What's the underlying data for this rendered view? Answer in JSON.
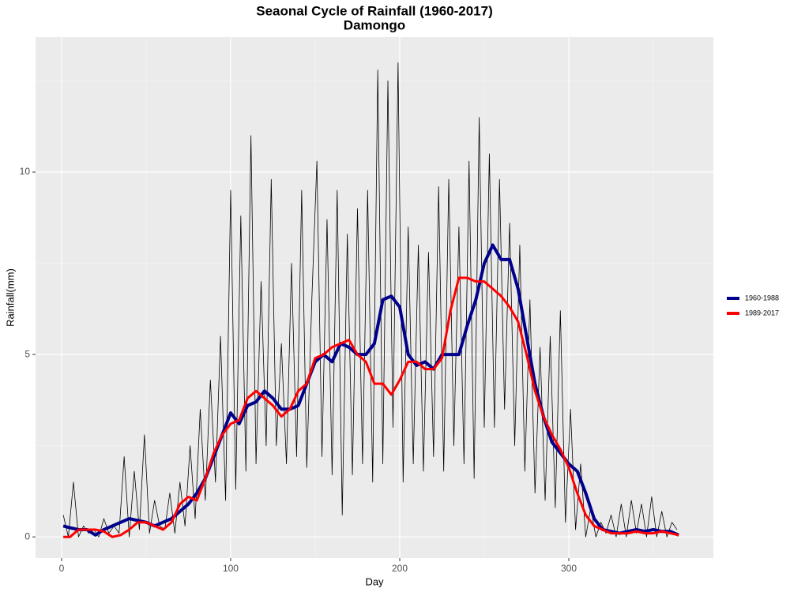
{
  "chart_data": {
    "type": "line",
    "title": "Seaonal Cycle of Rainfall (1960-2017)",
    "subtitle": "Damongo",
    "xlabel": "Day",
    "ylabel": "Rainfall(mm)",
    "xlim": [
      -15.4,
      385.5
    ],
    "ylim": [
      -0.58,
      13.7
    ],
    "xticks": [
      0,
      100,
      200,
      300
    ],
    "yticks": [
      0,
      5,
      10
    ],
    "xminor": [
      50,
      150,
      250,
      350
    ],
    "yminor": [
      2.5,
      7.5,
      12.5
    ],
    "grid": true,
    "legend": "right",
    "series": [
      {
        "color": "#000000",
        "width": 0.8,
        "x": [
          1,
          4,
          7,
          10,
          13,
          16,
          19,
          22,
          25,
          28,
          31,
          34,
          37,
          40,
          43,
          46,
          49,
          52,
          55,
          58,
          61,
          64,
          67,
          70,
          73,
          76,
          79,
          82,
          85,
          88,
          91,
          94,
          97,
          100,
          103,
          106,
          109,
          112,
          115,
          118,
          121,
          124,
          127,
          130,
          133,
          136,
          139,
          142,
          145,
          148,
          151,
          154,
          157,
          160,
          163,
          166,
          169,
          172,
          175,
          178,
          181,
          184,
          187,
          190,
          193,
          196,
          199,
          202,
          205,
          208,
          211,
          214,
          217,
          220,
          223,
          226,
          229,
          232,
          235,
          238,
          241,
          244,
          247,
          250,
          253,
          256,
          259,
          262,
          265,
          268,
          271,
          274,
          277,
          280,
          283,
          286,
          289,
          292,
          295,
          298,
          301,
          304,
          307,
          310,
          313,
          316,
          319,
          322,
          325,
          328,
          331,
          334,
          337,
          340,
          343,
          346,
          349,
          352,
          355,
          358,
          361,
          364
        ],
        "values": [
          0.6,
          0,
          1.5,
          0,
          0.3,
          0.1,
          0.2,
          0,
          0.5,
          0.1,
          0.3,
          0.1,
          2.2,
          0,
          1.8,
          0.2,
          2.8,
          0.1,
          1.0,
          0.3,
          0.2,
          1.2,
          0.1,
          1.5,
          0.3,
          2.5,
          0.5,
          3.5,
          1.0,
          4.3,
          1.5,
          5.5,
          1.0,
          9.5,
          1.3,
          8.8,
          1.8,
          11.0,
          2.0,
          7.0,
          2.5,
          9.8,
          2.5,
          5.3,
          2.0,
          7.5,
          2.2,
          9.5,
          1.9,
          6.5,
          10.3,
          2.2,
          8.7,
          1.7,
          9.5,
          0.6,
          8.3,
          1.7,
          9.0,
          2.0,
          9.5,
          1.5,
          12.8,
          2.0,
          12.5,
          3.0,
          13.0,
          1.5,
          8.5,
          2.0,
          8.0,
          1.8,
          7.8,
          2.2,
          9.6,
          1.8,
          9.8,
          2.5,
          8.5,
          2.0,
          10.3,
          1.6,
          11.5,
          3.0,
          10.5,
          3.0,
          9.8,
          3.5,
          8.6,
          2.5,
          8.0,
          1.8,
          6.5,
          1.2,
          5.2,
          1.0,
          5.5,
          0.8,
          6.2,
          0.4,
          3.5,
          0.2,
          2.0,
          0,
          0.8,
          0,
          0.4,
          0.1,
          0.6,
          0,
          0.9,
          0,
          1.0,
          0.1,
          0.9,
          0,
          1.1,
          0,
          0.7,
          0,
          0.4,
          0.2
        ]
      },
      {
        "name": "1960-1988",
        "color": "#00008B",
        "width": 4,
        "x": [
          1,
          5,
          10,
          15,
          20,
          25,
          30,
          35,
          40,
          45,
          50,
          55,
          60,
          65,
          70,
          75,
          80,
          85,
          90,
          95,
          100,
          105,
          110,
          115,
          120,
          125,
          130,
          135,
          140,
          145,
          150,
          155,
          160,
          165,
          170,
          175,
          180,
          185,
          190,
          195,
          200,
          205,
          210,
          215,
          220,
          225,
          230,
          235,
          240,
          245,
          250,
          255,
          260,
          265,
          270,
          275,
          280,
          285,
          290,
          295,
          300,
          305,
          310,
          315,
          320,
          325,
          330,
          335,
          340,
          345,
          350,
          355,
          360,
          365
        ],
        "values": [
          0.3,
          0.25,
          0.2,
          0.2,
          0.05,
          0.2,
          0.3,
          0.4,
          0.5,
          0.45,
          0.4,
          0.3,
          0.4,
          0.5,
          0.7,
          0.9,
          1.2,
          1.6,
          2.2,
          2.8,
          3.4,
          3.1,
          3.6,
          3.7,
          4.0,
          3.8,
          3.5,
          3.5,
          3.6,
          4.2,
          4.8,
          5.0,
          4.8,
          5.3,
          5.2,
          5.0,
          5.0,
          5.3,
          6.5,
          6.6,
          6.3,
          5.0,
          4.7,
          4.8,
          4.6,
          5.0,
          5.0,
          5.0,
          5.8,
          6.5,
          7.5,
          8.0,
          7.6,
          7.6,
          6.8,
          5.5,
          4.2,
          3.3,
          2.6,
          2.3,
          2.0,
          1.8,
          1.2,
          0.5,
          0.2,
          0.15,
          0.1,
          0.15,
          0.2,
          0.15,
          0.2,
          0.15,
          0.15,
          0.05
        ]
      },
      {
        "name": "1989-2017",
        "color": "#FF0000",
        "width": 3,
        "x": [
          1,
          5,
          10,
          15,
          20,
          25,
          30,
          35,
          40,
          45,
          50,
          55,
          60,
          65,
          70,
          75,
          80,
          85,
          90,
          95,
          100,
          105,
          110,
          115,
          120,
          125,
          130,
          135,
          140,
          145,
          150,
          155,
          160,
          165,
          170,
          175,
          180,
          185,
          190,
          195,
          200,
          205,
          210,
          215,
          220,
          225,
          230,
          235,
          240,
          245,
          250,
          255,
          260,
          265,
          270,
          275,
          280,
          285,
          290,
          295,
          300,
          305,
          310,
          315,
          320,
          325,
          330,
          335,
          340,
          345,
          350,
          355,
          360,
          365
        ],
        "values": [
          0.0,
          0.0,
          0.2,
          0.2,
          0.2,
          0.15,
          0.0,
          0.05,
          0.2,
          0.4,
          0.4,
          0.3,
          0.2,
          0.4,
          0.9,
          1.1,
          1.0,
          1.6,
          2.3,
          2.8,
          3.1,
          3.2,
          3.8,
          4.0,
          3.8,
          3.6,
          3.3,
          3.5,
          4.0,
          4.2,
          4.9,
          5.0,
          5.2,
          5.3,
          5.4,
          5.0,
          4.8,
          4.2,
          4.2,
          3.9,
          4.3,
          4.8,
          4.8,
          4.6,
          4.6,
          4.9,
          6.2,
          7.1,
          7.1,
          7.0,
          7.0,
          6.8,
          6.6,
          6.3,
          5.9,
          5.0,
          4.0,
          3.3,
          2.8,
          2.4,
          1.9,
          1.2,
          0.6,
          0.3,
          0.2,
          0.1,
          0.1,
          0.1,
          0.15,
          0.1,
          0.1,
          0.15,
          0.1,
          0.05
        ]
      }
    ]
  }
}
